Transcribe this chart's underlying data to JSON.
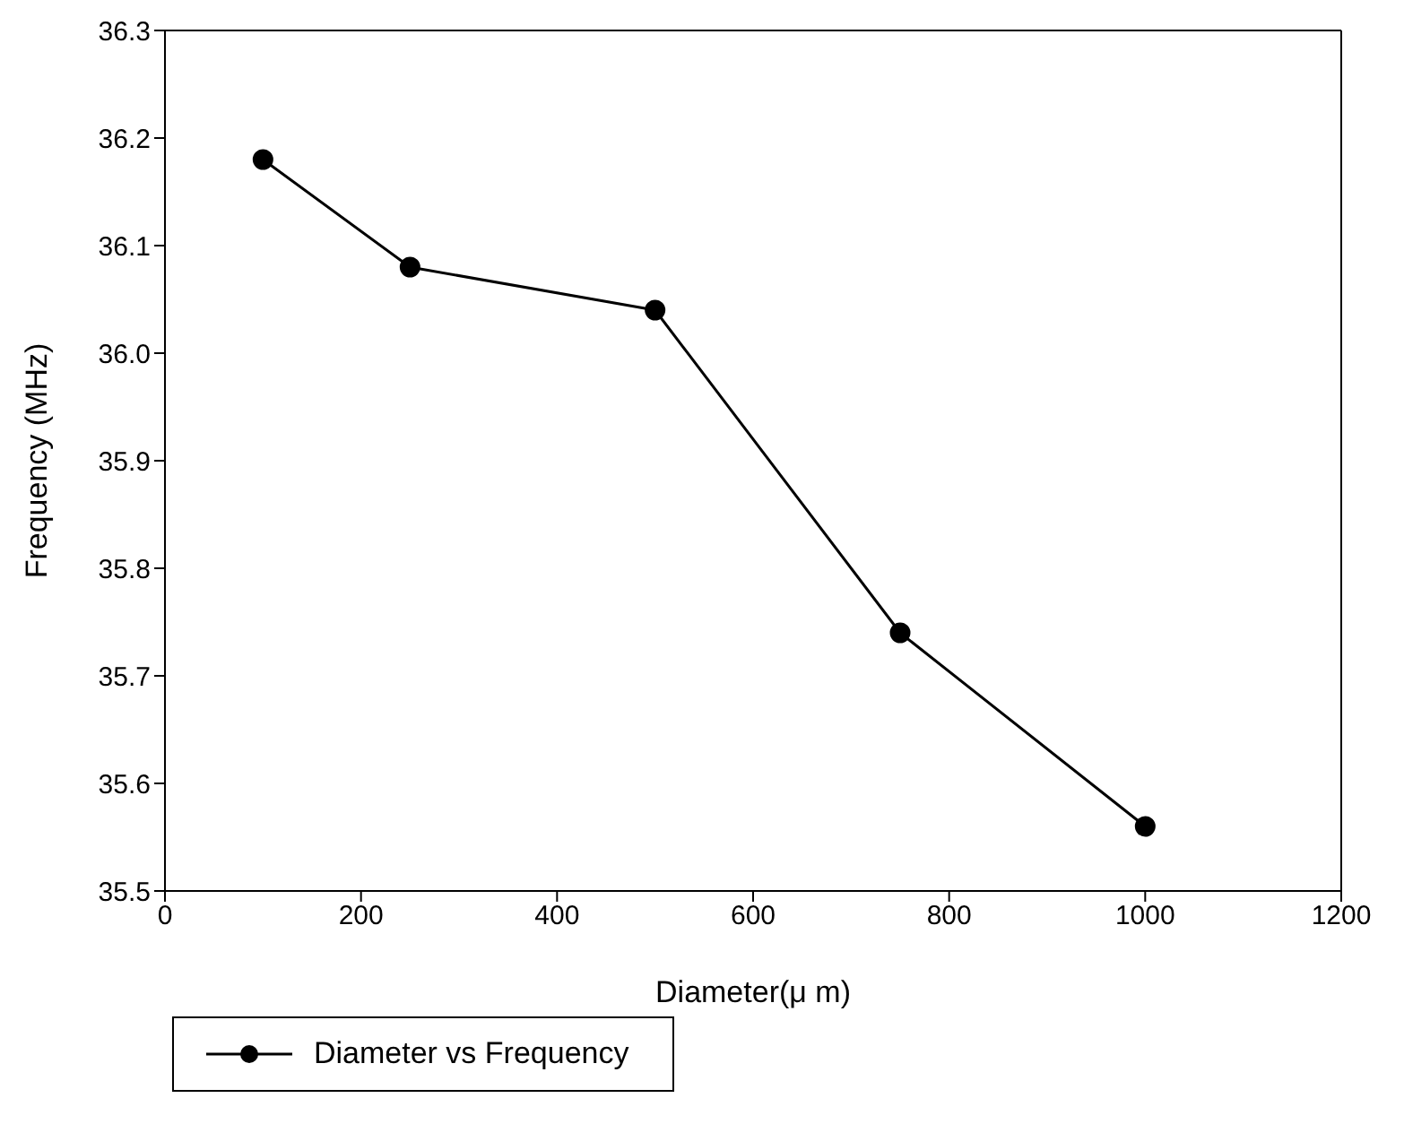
{
  "chart_data": {
    "type": "line",
    "xlabel": "Diameter(μ m)",
    "ylabel": "Frequency (MHz)",
    "x": [
      100,
      250,
      500,
      750,
      1000
    ],
    "series": [
      {
        "name": "Diameter vs Frequency",
        "color": "#000000",
        "values": [
          36.18,
          36.08,
          36.04,
          35.74,
          35.56
        ]
      }
    ],
    "xlim": [
      0,
      1200
    ],
    "xticks": [
      0,
      200,
      400,
      600,
      800,
      1000,
      1200
    ],
    "ylim": [
      35.5,
      36.3
    ],
    "yticks": [
      {
        "value": 35.5,
        "label": "35.5"
      },
      {
        "value": 35.6,
        "label": "35.6"
      },
      {
        "value": 35.7,
        "label": "35.7"
      },
      {
        "value": 35.8,
        "label": "35.8"
      },
      {
        "value": 35.9,
        "label": "35.9"
      },
      {
        "value": 36.0,
        "label": "36.0"
      },
      {
        "value": 36.1,
        "label": "36.1"
      },
      {
        "value": 36.2,
        "label": "36.2"
      },
      {
        "value": 36.3,
        "label": "36.3"
      }
    ],
    "grid": false,
    "legend": "bottom left",
    "marker": "circle",
    "line_style": "solid"
  }
}
